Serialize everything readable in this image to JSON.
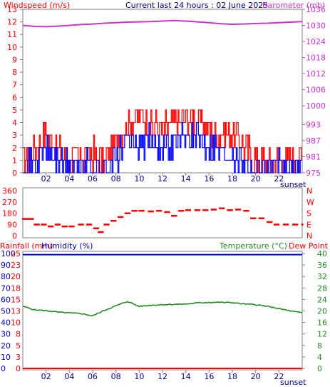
{
  "header": {
    "title": "Current last 24 hours : 02 June 2025",
    "windspeed_label": "Windspeed (m/s)",
    "barometer_label": "Barometer (mb)"
  },
  "middle": {
    "direction_ticks": [
      "360",
      "270",
      "180",
      "90",
      "0"
    ],
    "compass_ticks": [
      "N",
      "W",
      "S",
      "E",
      "N"
    ]
  },
  "bottom": {
    "rainfall_label": "Rainfall (mm)",
    "humidity_label": "Humidity (%)",
    "temperature_label": "Temperature (°C)",
    "dewpoint_label": "Dew Point"
  },
  "colors": {
    "frame": "#808080",
    "windspeed_label": "#ff0000",
    "barometer": "#cc33cc",
    "gust": "#ff0000",
    "wind": "#0000ff",
    "direction": "#ff0000",
    "humidity": "#0000cc",
    "temperature": "#228b22",
    "dewpoint": "#ff0000",
    "rainfall": "#ff0000"
  },
  "chart_data": [
    {
      "type": "line",
      "id": "wind-barometer",
      "x_ticks": [
        "02",
        "04",
        "06",
        "08",
        "10",
        "12",
        "14",
        "16",
        "18",
        "20",
        "22"
      ],
      "x_extra_label": "sunset",
      "windspeed_axis": {
        "ticks": [
          "0",
          "1",
          "2",
          "3",
          "4",
          "5",
          "6",
          "7",
          "8",
          "9",
          "10",
          "11",
          "12",
          "13"
        ],
        "ylim": [
          0,
          13
        ]
      },
      "barometer_axis": {
        "ticks": [
          "975",
          "981",
          "987",
          "993",
          "1000",
          "1006",
          "1012",
          "1018",
          "1024",
          "1030",
          "1036"
        ],
        "ylim": [
          975,
          1036
        ]
      },
      "x_hours": [
        0,
        1,
        2,
        3,
        4,
        5,
        6,
        7,
        8,
        9,
        10,
        11,
        12,
        13,
        14,
        15,
        16,
        17,
        18,
        19,
        20,
        21,
        22,
        23,
        24
      ],
      "series": [
        {
          "name": "Gust",
          "unit": "m/s",
          "values": [
            1.0,
            1.8,
            3.2,
            1.8,
            1.0,
            1.2,
            1.5,
            1.0,
            2.5,
            4.0,
            4.5,
            3.8,
            3.5,
            3.8,
            4.3,
            4.2,
            3.5,
            3.0,
            3.2,
            2.2,
            1.0,
            1.0,
            1.0,
            1.0,
            1.2
          ]
        },
        {
          "name": "Windspeed",
          "unit": "m/s",
          "values": [
            0.4,
            0.8,
            1.6,
            1.0,
            0.5,
            0.4,
            0.7,
            0.3,
            1.2,
            2.6,
            2.2,
            2.5,
            2.2,
            2.4,
            2.9,
            2.6,
            2.2,
            1.8,
            1.6,
            1.0,
            0.4,
            0.4,
            0.5,
            0.4,
            0.8
          ]
        },
        {
          "name": "Barometer",
          "unit": "mb",
          "values": [
            1030.0,
            1029.6,
            1029.5,
            1029.7,
            1030.0,
            1030.3,
            1030.5,
            1030.8,
            1031.0,
            1031.2,
            1031.3,
            1031.4,
            1031.6,
            1031.8,
            1031.6,
            1031.3,
            1031.0,
            1030.6,
            1030.4,
            1030.5,
            1030.7,
            1030.8,
            1031.0,
            1031.2,
            1031.4
          ]
        }
      ]
    },
    {
      "type": "scatter",
      "id": "wind-direction",
      "x_ticks": [],
      "ylim": [
        0,
        360
      ],
      "points": [
        {
          "x": 0.0,
          "y": 135
        },
        {
          "x": 0.5,
          "y": 135
        },
        {
          "x": 1.0,
          "y": 90
        },
        {
          "x": 1.6,
          "y": 90
        },
        {
          "x": 2.2,
          "y": 75
        },
        {
          "x": 2.8,
          "y": 90
        },
        {
          "x": 3.4,
          "y": 75
        },
        {
          "x": 4.0,
          "y": 75
        },
        {
          "x": 4.8,
          "y": 90
        },
        {
          "x": 5.5,
          "y": 90
        },
        {
          "x": 6.1,
          "y": 60
        },
        {
          "x": 6.5,
          "y": 30
        },
        {
          "x": 7.0,
          "y": 90
        },
        {
          "x": 7.6,
          "y": 120
        },
        {
          "x": 8.2,
          "y": 150
        },
        {
          "x": 8.8,
          "y": 180
        },
        {
          "x": 9.4,
          "y": 200
        },
        {
          "x": 10.0,
          "y": 200
        },
        {
          "x": 10.8,
          "y": 195
        },
        {
          "x": 11.5,
          "y": 200
        },
        {
          "x": 12.2,
          "y": 190
        },
        {
          "x": 12.8,
          "y": 160
        },
        {
          "x": 13.4,
          "y": 200
        },
        {
          "x": 14.0,
          "y": 205
        },
        {
          "x": 14.8,
          "y": 205
        },
        {
          "x": 15.5,
          "y": 205
        },
        {
          "x": 16.2,
          "y": 210
        },
        {
          "x": 16.9,
          "y": 220
        },
        {
          "x": 17.6,
          "y": 205
        },
        {
          "x": 18.3,
          "y": 210
        },
        {
          "x": 19.0,
          "y": 200
        },
        {
          "x": 19.6,
          "y": 140
        },
        {
          "x": 20.3,
          "y": 140
        },
        {
          "x": 21.0,
          "y": 110
        },
        {
          "x": 21.6,
          "y": 90
        },
        {
          "x": 22.4,
          "y": 90
        },
        {
          "x": 23.2,
          "y": 90
        },
        {
          "x": 24.0,
          "y": 90
        }
      ],
      "series": [
        {
          "name": "Wind Direction",
          "unit": "deg"
        }
      ]
    },
    {
      "type": "line",
      "id": "humidity-temperature",
      "x_ticks": [
        "02",
        "04",
        "06",
        "08",
        "10",
        "12",
        "14",
        "16",
        "18",
        "20",
        "22"
      ],
      "x_extra_label": "sunset",
      "humidity_axis": {
        "ticks": [
          "0",
          "10",
          "20",
          "30",
          "40",
          "50",
          "60",
          "70",
          "80",
          "90",
          "100"
        ],
        "ylim": [
          0,
          100
        ]
      },
      "rainfall_axis": {
        "ticks": [
          "0",
          "3",
          "5",
          "8",
          "10",
          "13",
          "15",
          "18",
          "20",
          "23",
          "25"
        ],
        "ylim": [
          0,
          25
        ]
      },
      "temperature_axis": {
        "ticks": [
          "0",
          "4",
          "8",
          "12",
          "16",
          "20",
          "24",
          "28",
          "32",
          "36",
          "40"
        ],
        "ylim": [
          0,
          40
        ]
      },
      "x_hours": [
        0,
        1,
        2,
        3,
        4,
        5,
        6,
        7,
        8,
        9,
        10,
        11,
        12,
        13,
        14,
        15,
        16,
        17,
        18,
        19,
        20,
        21,
        22,
        23,
        24
      ],
      "series": [
        {
          "name": "Temperature",
          "unit": "°C",
          "values": [
            21.6,
            20.4,
            20.1,
            19.6,
            19.3,
            19.1,
            18.3,
            20.2,
            21.8,
            23.3,
            21.6,
            22.0,
            22.2,
            22.3,
            22.4,
            22.8,
            23.0,
            23.0,
            22.9,
            22.4,
            22.2,
            21.6,
            20.8,
            20.0,
            19.3
          ]
        },
        {
          "name": "Humidity",
          "unit": "%",
          "values": [
            99,
            99,
            99,
            99,
            99,
            99,
            99,
            99,
            99,
            99,
            99,
            99,
            99,
            99,
            99,
            99,
            99,
            99,
            99,
            99,
            99,
            99,
            99,
            99,
            99
          ]
        },
        {
          "name": "Rainfall",
          "unit": "mm",
          "values": [
            0,
            0,
            0,
            0,
            0,
            0,
            0,
            0,
            0,
            0,
            0,
            0,
            0,
            0,
            0,
            0,
            0,
            0,
            0,
            0,
            0,
            0,
            0,
            0,
            0
          ]
        }
      ]
    }
  ]
}
